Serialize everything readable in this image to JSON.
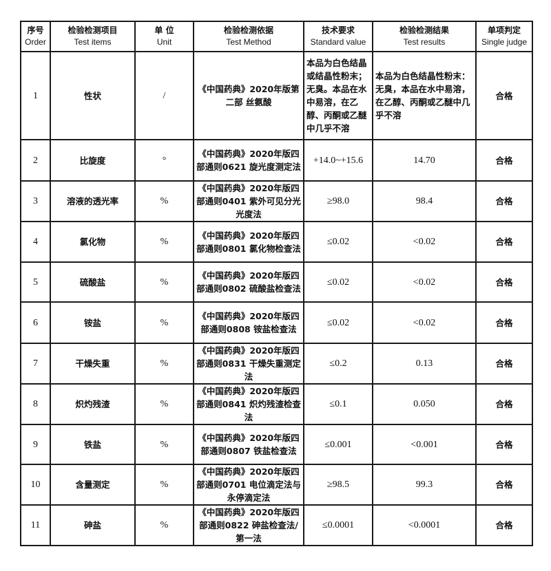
{
  "headers": [
    {
      "zh": "序号",
      "en": "Order"
    },
    {
      "zh": "检验检测项目",
      "en": "Test items"
    },
    {
      "zh": "单 位",
      "en": "Unit"
    },
    {
      "zh": "检验检测依据",
      "en": "Test Method"
    },
    {
      "zh": "技术要求",
      "en": "Standard value"
    },
    {
      "zh": "检验检测结果",
      "en": "Test results"
    },
    {
      "zh": "单项判定",
      "en": "Single judge"
    }
  ],
  "rows": [
    {
      "order": "1",
      "item": "性状",
      "unit": "/",
      "method": "《中国药典》2020年版第二部 丝氨酸",
      "standard": "本品为白色结晶或结晶性粉末；无臭。本品在水中易溶，在乙醇、丙酮或乙醚中几乎不溶",
      "result": "本品为白色结晶性粉末：无臭，本品在水中易溶，在乙醇、丙酮或乙醚中几乎不溶",
      "judge": "合格"
    },
    {
      "order": "2",
      "item": "比旋度",
      "unit": "°",
      "method": "《中国药典》2020年版四部通则0621 旋光度测定法",
      "standard": "+14.0~+15.6",
      "result": "14.70",
      "judge": "合格"
    },
    {
      "order": "3",
      "item": "溶液的透光率",
      "unit": "%",
      "method": "《中国药典》2020年版四部通则0401 紫外可见分光光度法",
      "standard": "≥98.0",
      "result": "98.4",
      "judge": "合格"
    },
    {
      "order": "4",
      "item": "氯化物",
      "unit": "%",
      "method": "《中国药典》2020年版四部通则0801 氯化物检查法",
      "standard": "≤0.02",
      "result": "<0.02",
      "judge": "合格"
    },
    {
      "order": "5",
      "item": "硫酸盐",
      "unit": "%",
      "method": "《中国药典》2020年版四部通则0802 硫酸盐检查法",
      "standard": "≤0.02",
      "result": "<0.02",
      "judge": "合格"
    },
    {
      "order": "6",
      "item": "铵盐",
      "unit": "%",
      "method": "《中国药典》2020年版四部通则0808 铵盐检查法",
      "standard": "≤0.02",
      "result": "<0.02",
      "judge": "合格"
    },
    {
      "order": "7",
      "item": "干燥失重",
      "unit": "%",
      "method": "《中国药典》2020年版四部通则0831 干燥失重测定法",
      "standard": "≤0.2",
      "result": "0.13",
      "judge": "合格"
    },
    {
      "order": "8",
      "item": "炽灼残渣",
      "unit": "%",
      "method": "《中国药典》2020年版四部通则0841 炽灼残渣检查法",
      "standard": "≤0.1",
      "result": "0.050",
      "judge": "合格"
    },
    {
      "order": "9",
      "item": "铁盐",
      "unit": "%",
      "method": "《中国药典》2020年版四部通则0807 铁盐检查法",
      "standard": "≤0.001",
      "result": "<0.001",
      "judge": "合格"
    },
    {
      "order": "10",
      "item": "含量测定",
      "unit": "%",
      "method": "《中国药典》2020年版四部通则0701 电位滴定法与永停滴定法",
      "standard": "≥98.5",
      "result": "99.3",
      "judge": "合格"
    },
    {
      "order": "11",
      "item": "砷盐",
      "unit": "%",
      "method": "《中国药典》2020年版四部通则0822 砷盐检查法/第一法",
      "standard": "≤0.0001",
      "result": "<0.0001",
      "judge": "合格"
    }
  ]
}
